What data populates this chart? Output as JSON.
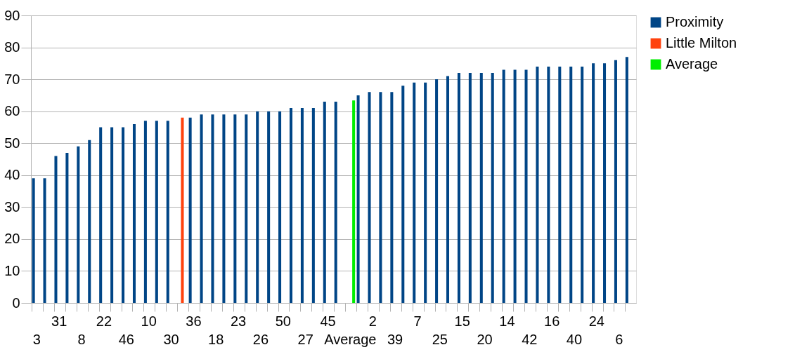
{
  "chart_data": {
    "type": "bar",
    "categories": [
      "3",
      null,
      "31",
      null,
      "8",
      null,
      "22",
      null,
      "46",
      null,
      "10",
      null,
      "30",
      null,
      "36",
      null,
      "18",
      null,
      "23",
      null,
      "26",
      null,
      "50",
      null,
      "27",
      null,
      "45",
      null,
      "Average",
      null,
      "2",
      null,
      "39",
      null,
      "7",
      null,
      "25",
      null,
      "15",
      null,
      "20",
      null,
      "14",
      null,
      "42",
      null,
      "16",
      null,
      "40",
      null,
      "24",
      null,
      "6",
      null
    ],
    "series": [
      {
        "name": "Proximity",
        "color": "#004586",
        "values": [
          39,
          39,
          46,
          47,
          49,
          51,
          55,
          55,
          55,
          56,
          57,
          57,
          57,
          null,
          58,
          59,
          59,
          59,
          59,
          59,
          60,
          60,
          60,
          61,
          61,
          61,
          63,
          63,
          null,
          65,
          66,
          66,
          66,
          68,
          69,
          69,
          70,
          71,
          72,
          72,
          72,
          72,
          73,
          73,
          73,
          74,
          74,
          74,
          74,
          74,
          75,
          75,
          76,
          77
        ]
      },
      {
        "name": "Little Milton",
        "color": "#ff420e",
        "values": [
          null,
          null,
          null,
          null,
          null,
          null,
          null,
          null,
          null,
          null,
          null,
          null,
          null,
          58,
          null,
          null,
          null,
          null,
          null,
          null,
          null,
          null,
          null,
          null,
          null,
          null,
          null,
          null,
          null,
          null,
          null,
          null,
          null,
          null,
          null,
          null,
          null,
          null,
          null,
          null,
          null,
          null,
          null,
          null,
          null,
          null,
          null,
          null,
          null,
          null,
          null,
          null,
          null,
          null
        ]
      },
      {
        "name": "Average",
        "color": "#00ee00",
        "values": [
          null,
          null,
          null,
          null,
          null,
          null,
          null,
          null,
          null,
          null,
          null,
          null,
          null,
          null,
          null,
          null,
          null,
          null,
          null,
          null,
          null,
          null,
          null,
          null,
          null,
          null,
          null,
          null,
          63.4,
          null,
          null,
          null,
          null,
          null,
          null,
          null,
          null,
          null,
          null,
          null,
          null,
          null,
          null,
          null,
          null,
          null,
          null,
          null,
          null,
          null,
          null,
          null,
          null,
          null
        ]
      }
    ],
    "ylim": [
      0,
      90
    ],
    "yticks": [
      0,
      10,
      20,
      30,
      40,
      50,
      60,
      70,
      80,
      90
    ],
    "grid": "y",
    "legend": "right"
  }
}
